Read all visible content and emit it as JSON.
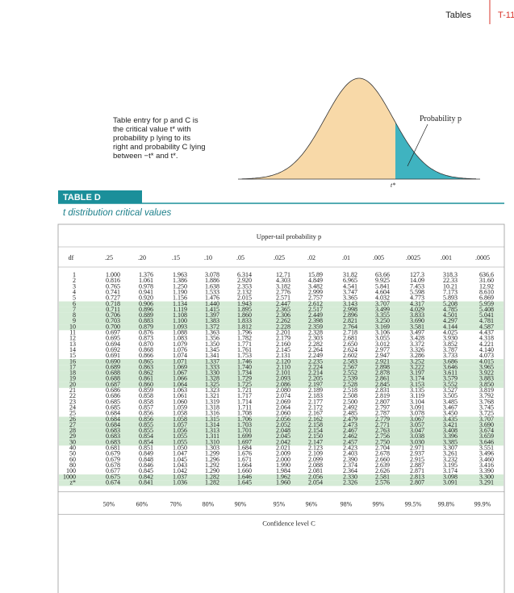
{
  "header": {
    "section": "Tables",
    "page": "T-11"
  },
  "figure": {
    "description": [
      "Table entry for p and C is",
      "the critical value t* with",
      "probability p lying to its",
      "right and probability C lying",
      "between −t* and t*."
    ],
    "prob_label": "Probability p",
    "t_label": "t*"
  },
  "table": {
    "label": "TABLE D",
    "title": "t distribution critical values",
    "upper_tail_label": "Upper-tail probability p",
    "columns": [
      "df",
      ".25",
      ".20",
      ".15",
      ".10",
      ".05",
      ".025",
      ".02",
      ".01",
      ".005",
      ".0025",
      ".001",
      ".0005"
    ],
    "rows": [
      [
        "1",
        "1.000",
        "1.376",
        "1.963",
        "3.078",
        "6.314",
        "12.71",
        "15.89",
        "31.82",
        "63.66",
        "127.3",
        "318.3",
        "636.6"
      ],
      [
        "2",
        "0.816",
        "1.061",
        "1.386",
        "1.886",
        "2.920",
        "4.303",
        "4.849",
        "6.965",
        "9.925",
        "14.09",
        "22.33",
        "31.60"
      ],
      [
        "3",
        "0.765",
        "0.978",
        "1.250",
        "1.638",
        "2.353",
        "3.182",
        "3.482",
        "4.541",
        "5.841",
        "7.453",
        "10.21",
        "12.92"
      ],
      [
        "4",
        "0.741",
        "0.941",
        "1.190",
        "1.533",
        "2.132",
        "2.776",
        "2.999",
        "3.747",
        "4.604",
        "5.598",
        "7.173",
        "8.610"
      ],
      [
        "5",
        "0.727",
        "0.920",
        "1.156",
        "1.476",
        "2.015",
        "2.571",
        "2.757",
        "3.365",
        "4.032",
        "4.773",
        "5.893",
        "6.869"
      ],
      [
        "6",
        "0.718",
        "0.906",
        "1.134",
        "1.440",
        "1.943",
        "2.447",
        "2.612",
        "3.143",
        "3.707",
        "4.317",
        "5.208",
        "5.959"
      ],
      [
        "7",
        "0.711",
        "0.896",
        "1.119",
        "1.415",
        "1.895",
        "2.365",
        "2.517",
        "2.998",
        "3.499",
        "4.029",
        "4.785",
        "5.408"
      ],
      [
        "8",
        "0.706",
        "0.889",
        "1.108",
        "1.397",
        "1.860",
        "2.306",
        "2.449",
        "2.896",
        "3.355",
        "3.833",
        "4.501",
        "5.041"
      ],
      [
        "9",
        "0.703",
        "0.883",
        "1.100",
        "1.383",
        "1.833",
        "2.262",
        "2.398",
        "2.821",
        "3.250",
        "3.690",
        "4.297",
        "4.781"
      ],
      [
        "10",
        "0.700",
        "0.879",
        "1.093",
        "1.372",
        "1.812",
        "2.228",
        "2.359",
        "2.764",
        "3.169",
        "3.581",
        "4.144",
        "4.587"
      ],
      [
        "11",
        "0.697",
        "0.876",
        "1.088",
        "1.363",
        "1.796",
        "2.201",
        "2.328",
        "2.718",
        "3.106",
        "3.497",
        "4.025",
        "4.437"
      ],
      [
        "12",
        "0.695",
        "0.873",
        "1.083",
        "1.356",
        "1.782",
        "2.179",
        "2.303",
        "2.681",
        "3.055",
        "3.428",
        "3.930",
        "4.318"
      ],
      [
        "13",
        "0.694",
        "0.870",
        "1.079",
        "1.350",
        "1.771",
        "2.160",
        "2.282",
        "2.650",
        "3.012",
        "3.372",
        "3.852",
        "4.221"
      ],
      [
        "14",
        "0.692",
        "0.868",
        "1.076",
        "1.345",
        "1.761",
        "2.145",
        "2.264",
        "2.624",
        "2.977",
        "3.326",
        "3.787",
        "4.140"
      ],
      [
        "15",
        "0.691",
        "0.866",
        "1.074",
        "1.341",
        "1.753",
        "2.131",
        "2.249",
        "2.602",
        "2.947",
        "3.286",
        "3.733",
        "4.073"
      ],
      [
        "16",
        "0.690",
        "0.865",
        "1.071",
        "1.337",
        "1.746",
        "2.120",
        "2.235",
        "2.583",
        "2.921",
        "3.252",
        "3.686",
        "4.015"
      ],
      [
        "17",
        "0.689",
        "0.863",
        "1.069",
        "1.333",
        "1.740",
        "2.110",
        "2.224",
        "2.567",
        "2.898",
        "3.222",
        "3.646",
        "3.965"
      ],
      [
        "18",
        "0.688",
        "0.862",
        "1.067",
        "1.330",
        "1.734",
        "2.101",
        "2.214",
        "2.552",
        "2.878",
        "3.197",
        "3.611",
        "3.922"
      ],
      [
        "19",
        "0.688",
        "0.861",
        "1.066",
        "1.328",
        "1.729",
        "2.093",
        "2.205",
        "2.539",
        "2.861",
        "3.174",
        "3.579",
        "3.883"
      ],
      [
        "20",
        "0.687",
        "0.860",
        "1.064",
        "1.325",
        "1.725",
        "2.086",
        "2.197",
        "2.528",
        "2.845",
        "3.153",
        "3.552",
        "3.850"
      ],
      [
        "21",
        "0.686",
        "0.859",
        "1.063",
        "1.323",
        "1.721",
        "2.080",
        "2.189",
        "2.518",
        "2.831",
        "3.135",
        "3.527",
        "3.819"
      ],
      [
        "22",
        "0.686",
        "0.858",
        "1.061",
        "1.321",
        "1.717",
        "2.074",
        "2.183",
        "2.508",
        "2.819",
        "3.119",
        "3.505",
        "3.792"
      ],
      [
        "23",
        "0.685",
        "0.858",
        "1.060",
        "1.319",
        "1.714",
        "2.069",
        "2.177",
        "2.500",
        "2.807",
        "3.104",
        "3.485",
        "3.768"
      ],
      [
        "24",
        "0.685",
        "0.857",
        "1.059",
        "1.318",
        "1.711",
        "2.064",
        "2.172",
        "2.492",
        "2.797",
        "3.091",
        "3.467",
        "3.745"
      ],
      [
        "25",
        "0.684",
        "0.856",
        "1.058",
        "1.316",
        "1.708",
        "2.060",
        "2.167",
        "2.485",
        "2.787",
        "3.078",
        "3.450",
        "3.725"
      ],
      [
        "26",
        "0.684",
        "0.856",
        "1.058",
        "1.315",
        "1.706",
        "2.056",
        "2.162",
        "2.479",
        "2.779",
        "3.067",
        "3.435",
        "3.707"
      ],
      [
        "27",
        "0.684",
        "0.855",
        "1.057",
        "1.314",
        "1.703",
        "2.052",
        "2.158",
        "2.473",
        "2.771",
        "3.057",
        "3.421",
        "3.690"
      ],
      [
        "28",
        "0.683",
        "0.855",
        "1.056",
        "1.313",
        "1.701",
        "2.048",
        "2.154",
        "2.467",
        "2.763",
        "3.047",
        "3.408",
        "3.674"
      ],
      [
        "29",
        "0.683",
        "0.854",
        "1.055",
        "1.311",
        "1.699",
        "2.045",
        "2.150",
        "2.462",
        "2.756",
        "3.038",
        "3.396",
        "3.659"
      ],
      [
        "30",
        "0.683",
        "0.854",
        "1.055",
        "1.310",
        "1.697",
        "2.042",
        "2.147",
        "2.457",
        "2.750",
        "3.030",
        "3.385",
        "3.646"
      ],
      [
        "40",
        "0.681",
        "0.851",
        "1.050",
        "1.303",
        "1.684",
        "2.021",
        "2.123",
        "2.423",
        "2.704",
        "2.971",
        "3.307",
        "3.551"
      ],
      [
        "50",
        "0.679",
        "0.849",
        "1.047",
        "1.299",
        "1.676",
        "2.009",
        "2.109",
        "2.403",
        "2.678",
        "2.937",
        "3.261",
        "3.496"
      ],
      [
        "60",
        "0.679",
        "0.848",
        "1.045",
        "1.296",
        "1.671",
        "2.000",
        "2.099",
        "2.390",
        "2.660",
        "2.915",
        "3.232",
        "3.460"
      ],
      [
        "80",
        "0.678",
        "0.846",
        "1.043",
        "1.292",
        "1.664",
        "1.990",
        "2.088",
        "2.374",
        "2.639",
        "2.887",
        "3.195",
        "3.416"
      ],
      [
        "100",
        "0.677",
        "0.845",
        "1.042",
        "1.290",
        "1.660",
        "1.984",
        "2.081",
        "2.364",
        "2.626",
        "2.871",
        "3.174",
        "3.390"
      ],
      [
        "1000",
        "0.675",
        "0.842",
        "1.037",
        "1.282",
        "1.646",
        "1.962",
        "2.056",
        "2.330",
        "2.581",
        "2.813",
        "3.098",
        "3.300"
      ],
      [
        "z*",
        "0.674",
        "0.841",
        "1.036",
        "1.282",
        "1.645",
        "1.960",
        "2.054",
        "2.326",
        "2.576",
        "2.807",
        "3.091",
        "3.291"
      ]
    ],
    "confidence_values": [
      "50%",
      "60%",
      "70%",
      "80%",
      "90%",
      "95%",
      "96%",
      "98%",
      "99%",
      "99.5%",
      "99.8%",
      "99.9%"
    ],
    "confidence_label": "Confidence level C"
  }
}
